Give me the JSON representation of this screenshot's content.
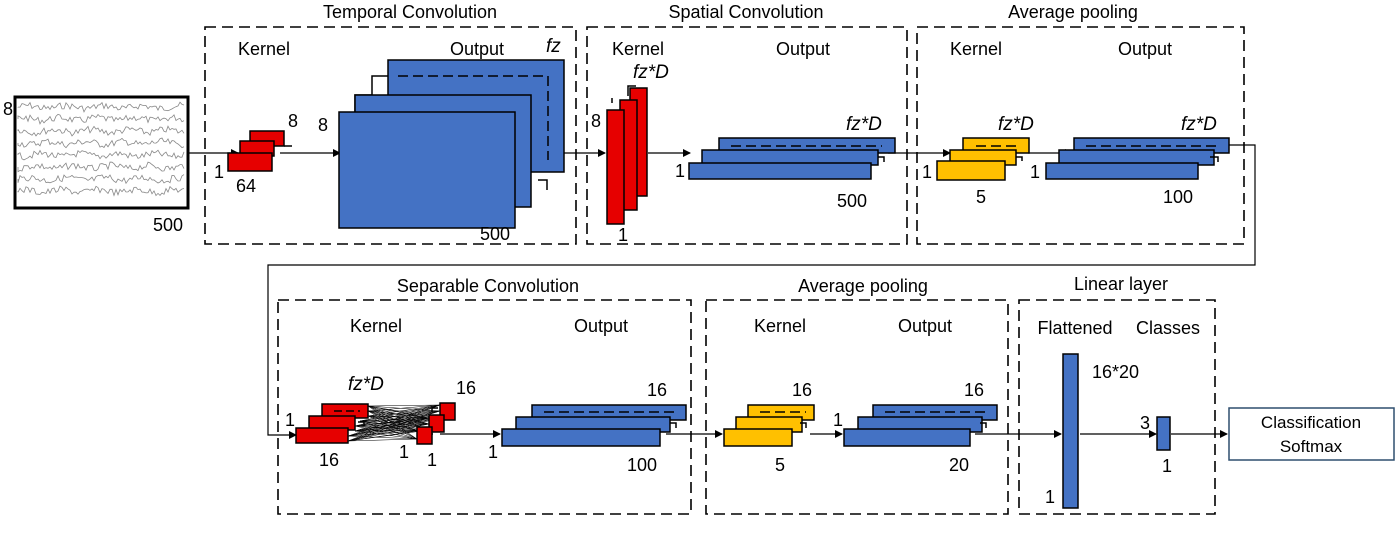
{
  "blocks": {
    "temporal": {
      "title": "Temporal Convolution",
      "kernel": "Kernel",
      "output": "Output",
      "filters": "fz",
      "kernel_h": "8",
      "kernel_w": "64",
      "kernel_d": "1",
      "out_h": "8",
      "out_w": "500"
    },
    "spatial": {
      "title": "Spatial Convolution",
      "kernel": "Kernel",
      "output": "Output",
      "kernel_filters": "fz*D",
      "kernel_h": "8",
      "kernel_d": "1",
      "out_filters": "fz*D",
      "out_h": "1",
      "out_w": "500"
    },
    "pool1": {
      "title": "Average pooling",
      "kernel": "Kernel",
      "output": "Output",
      "kernel_filters": "fz*D",
      "kernel_h": "1",
      "kernel_w": "5",
      "out_filters": "fz*D",
      "out_h": "1",
      "out_w": "100"
    },
    "separable": {
      "title": "Separable Convolution",
      "kernel": "Kernel",
      "output": "Output",
      "dw_filters": "fz*D",
      "dw_h": "1",
      "dw_w": "16",
      "pw_filters": "16",
      "pw_h": "1",
      "pw_w": "1",
      "out_filters": "16",
      "out_h": "1",
      "out_w": "100"
    },
    "pool2": {
      "title": "Average pooling",
      "kernel": "Kernel",
      "output": "Output",
      "kernel_filters": "16",
      "kernel_w": "5",
      "out_filters": "16",
      "out_h": "1",
      "out_w": "20"
    },
    "linear": {
      "title": "Linear layer",
      "flattened": "Flattened",
      "classes": "Classes",
      "flat_size": "16*20",
      "flat_w": "1",
      "classes_n": "3",
      "classes_w": "1"
    }
  },
  "input": {
    "channels": "8",
    "samples": "500"
  },
  "output_box": {
    "line1": "Classification",
    "line2": "Softmax"
  },
  "colors": {
    "red": "#e60000",
    "blue": "#4472c4",
    "yellow": "#ffc000"
  }
}
